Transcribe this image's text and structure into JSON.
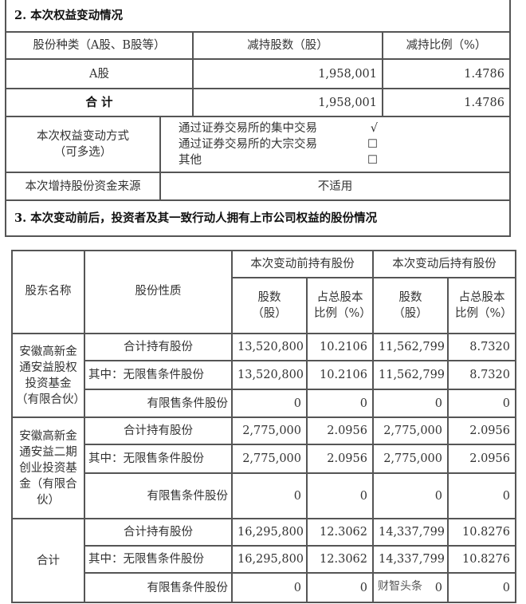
{
  "section2": {
    "title": "2. 本次权益变动情况",
    "headers": [
      "股份种类（A股、B股等）",
      "减持股数（股）",
      "减持比例（%）"
    ],
    "rows": [
      [
        "A股",
        "1,958,001",
        "1.4786"
      ],
      [
        "合 计",
        "1,958,001",
        "1.4786"
      ]
    ],
    "method_label": "本次权益变动方式",
    "method_sub": "（可多选）",
    "options": [
      {
        "label": "通过证券交易所的集中交易",
        "mark": "√"
      },
      {
        "label": "通过证券交易所的大宗交易",
        "mark": "☐"
      },
      {
        "label": "其他",
        "mark": "☐"
      }
    ],
    "fund_label": "本次增持股份资金来源",
    "fund_value": "不适用"
  },
  "section3": {
    "title": "3. 本次变动前后，投资者及其一致行动人拥有上市公司权益的股份情况"
  },
  "table2": {
    "h_name": "股东名称",
    "h_type": "股份性质",
    "h_before": "本次变动前持有股份",
    "h_after": "本次变动后持有股份",
    "h_shares": "股数（股）",
    "h_ratio": "占总股本比例（%）",
    "groups": [
      {
        "name": "安徽高新金通安益股权投资基金（有限合伙）",
        "rows": [
          [
            "合计持有股份",
            "13,520,800",
            "10.2106",
            "11,562,799",
            "8.7320"
          ],
          [
            "其中：无限售条件股份",
            "13,520,800",
            "10.2106",
            "11,562,799",
            "8.7320"
          ],
          [
            "有限售条件股份",
            "0",
            "0",
            "0",
            "0"
          ]
        ]
      },
      {
        "name": "安徽高新金通安益二期创业投资基金（有限合伙）",
        "rows": [
          [
            "合计持有股份",
            "2,775,000",
            "2.0956",
            "2,775,000",
            "2.0956"
          ],
          [
            "其中：无限售条件股份",
            "2,775,000",
            "2.0956",
            "2,775,000",
            "2.0956"
          ],
          [
            "有限售条件股份",
            "0",
            "0",
            "0",
            "0"
          ]
        ]
      },
      {
        "name": "合计",
        "rows": [
          [
            "合计持有股份",
            "16,295,800",
            "12.3062",
            "14,337,799",
            "10.8276"
          ],
          [
            "其中：无限售条件股份",
            "16,295,800",
            "12.3062",
            "14,337,799",
            "10.8276"
          ],
          [
            "有限售条件股份",
            "0",
            "0",
            "0",
            "0"
          ]
        ]
      }
    ]
  },
  "watermark": "财智头条"
}
